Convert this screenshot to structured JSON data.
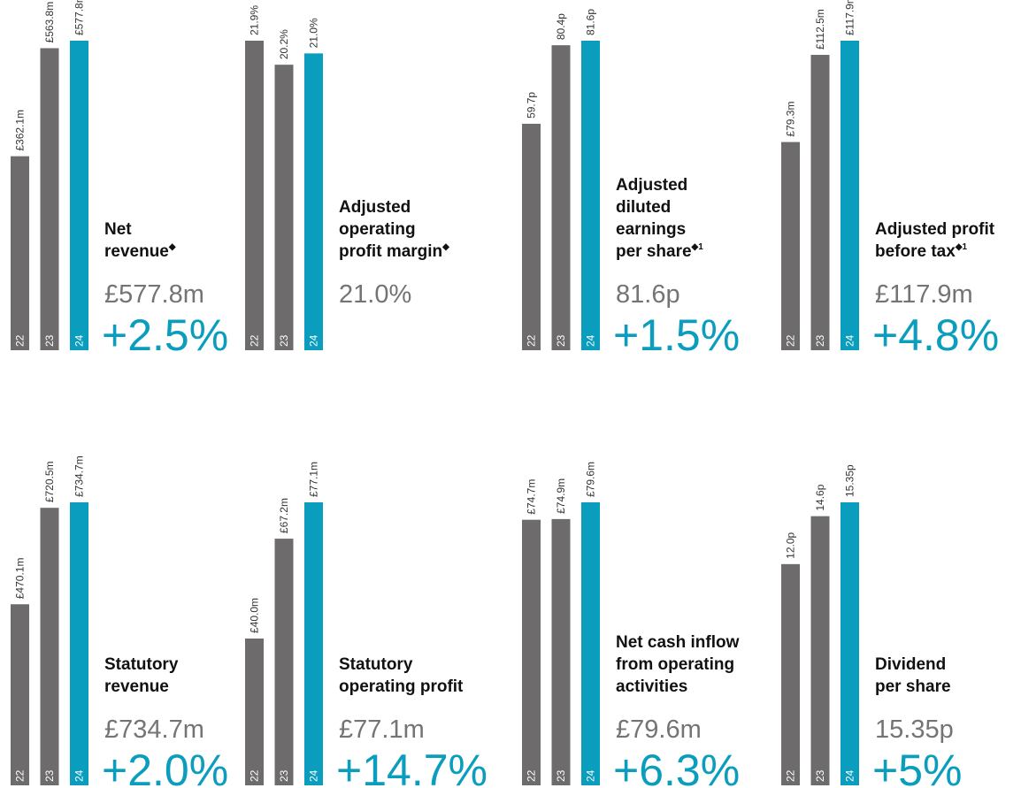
{
  "chart_data": [
    {
      "type": "bar",
      "title": [
        "Net",
        "revenue"
      ],
      "title_marker": "◆",
      "categories": [
        "22",
        "23",
        "24"
      ],
      "values": [
        362.1,
        563.8,
        577.8
      ],
      "value_labels": [
        "£362.1m",
        "£563.8m",
        "£577.8m"
      ],
      "colors": [
        "#6d6b6b",
        "#6d6b6b",
        "#0a9dbd"
      ],
      "headline": "£577.8m",
      "change": "+2.5%"
    },
    {
      "type": "bar",
      "title": [
        "Adjusted",
        "operating",
        "profit margin"
      ],
      "title_marker": "◆",
      "categories": [
        "22",
        "23",
        "24"
      ],
      "values": [
        21.9,
        20.2,
        21.0
      ],
      "value_labels": [
        "21.9%",
        "20.2%",
        "21.0%"
      ],
      "colors": [
        "#6d6b6b",
        "#6d6b6b",
        "#0a9dbd"
      ],
      "headline": "21.0%"
    },
    {
      "type": "bar",
      "title": [
        "Adjusted",
        "diluted",
        "earnings",
        "per share"
      ],
      "title_marker": "◆1",
      "categories": [
        "22",
        "23",
        "24"
      ],
      "values": [
        59.7,
        80.4,
        81.6
      ],
      "value_labels": [
        "59.7p",
        "80.4p",
        "81.6p"
      ],
      "colors": [
        "#6d6b6b",
        "#6d6b6b",
        "#0a9dbd"
      ],
      "headline": "81.6p",
      "change": "+1.5%"
    },
    {
      "type": "bar",
      "title": [
        "Adjusted profit",
        "before tax"
      ],
      "title_marker": "◆1",
      "categories": [
        "22",
        "23",
        "24"
      ],
      "values": [
        79.3,
        112.5,
        117.9
      ],
      "value_labels": [
        "£79.3m",
        "£112.5m",
        "£117.9m"
      ],
      "colors": [
        "#6d6b6b",
        "#6d6b6b",
        "#0a9dbd"
      ],
      "headline": "£117.9m",
      "change": "+4.8%"
    },
    {
      "type": "bar",
      "title": [
        "Statutory",
        "revenue"
      ],
      "categories": [
        "22",
        "23",
        "24"
      ],
      "values": [
        470.1,
        720.5,
        734.7
      ],
      "value_labels": [
        "£470.1m",
        "£720.5m",
        "£734.7m"
      ],
      "colors": [
        "#6d6b6b",
        "#6d6b6b",
        "#0a9dbd"
      ],
      "headline": "£734.7m",
      "change": "+2.0%"
    },
    {
      "type": "bar",
      "title": [
        "Statutory",
        "operating profit"
      ],
      "categories": [
        "22",
        "23",
        "24"
      ],
      "values": [
        40.0,
        67.2,
        77.1
      ],
      "value_labels": [
        "£40.0m",
        "£67.2m",
        "£77.1m"
      ],
      "colors": [
        "#6d6b6b",
        "#6d6b6b",
        "#0a9dbd"
      ],
      "headline": "£77.1m",
      "change": "+14.7%"
    },
    {
      "type": "bar",
      "title": [
        "Net cash inflow",
        "from operating",
        "activities"
      ],
      "categories": [
        "22",
        "23",
        "24"
      ],
      "values": [
        74.7,
        74.9,
        79.6
      ],
      "value_labels": [
        "£74.7m",
        "£74.9m",
        "£79.6m"
      ],
      "colors": [
        "#6d6b6b",
        "#6d6b6b",
        "#0a9dbd"
      ],
      "headline": "£79.6m",
      "change": "+6.3%"
    },
    {
      "type": "bar",
      "title": [
        "Dividend",
        "per share"
      ],
      "categories": [
        "22",
        "23",
        "24"
      ],
      "values": [
        12.0,
        14.6,
        15.35
      ],
      "value_labels": [
        "12.0p",
        "14.6p",
        "15.35p"
      ],
      "colors": [
        "#6d6b6b",
        "#6d6b6b",
        "#0a9dbd"
      ],
      "headline": "15.35p",
      "change": "+5%"
    }
  ]
}
